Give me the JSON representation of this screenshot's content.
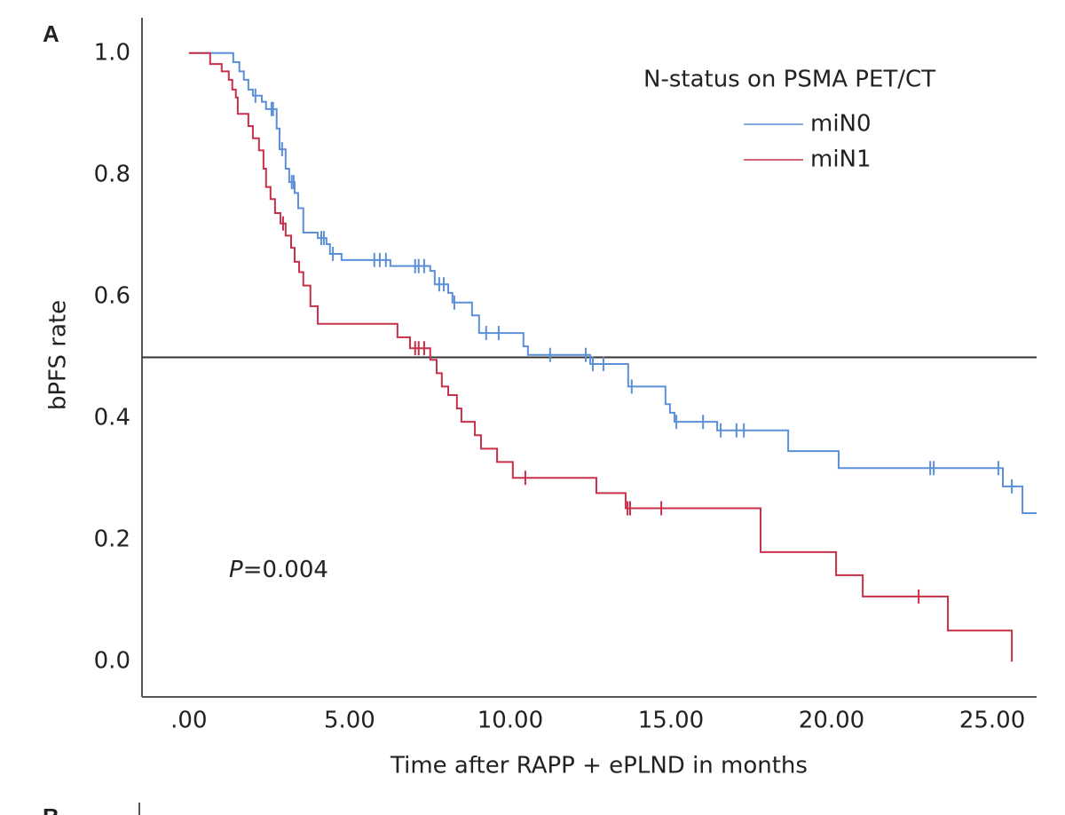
{
  "chart_data": {
    "type": "kaplan-meier",
    "panel_label": "A",
    "next_panel_label": "B",
    "x_label": "Time after RAPP + ePLND in months",
    "y_label": "bPFS rate",
    "legend_title": "N-status on PSMA PET/CT",
    "annotation": {
      "italic": "P",
      "text": "=0.004"
    },
    "reference_line": 0.5,
    "xlim": [
      -1.46,
      26.38
    ],
    "ylim": [
      -0.058,
      1.058
    ],
    "xticks": [
      {
        "value": 0,
        "label": ".00"
      },
      {
        "value": 5,
        "label": "5.00"
      },
      {
        "value": 10,
        "label": "10.00"
      },
      {
        "value": 15,
        "label": "15.00"
      },
      {
        "value": 20,
        "label": "20.00"
      },
      {
        "value": 25,
        "label": "25.00"
      }
    ],
    "yticks": [
      {
        "value": 0,
        "label": "0.0"
      },
      0.2,
      0.4,
      0.6,
      0.8,
      {
        "value": 1,
        "label": "1.0"
      }
    ],
    "series": [
      {
        "name": "miN0",
        "color": "#5b8fd9",
        "x": [
          0,
          1.38,
          1.57,
          1.71,
          1.85,
          1.99,
          2.27,
          2.4,
          2.73,
          2.82,
          3.01,
          3.12,
          3.29,
          3.4,
          3.56,
          4.01,
          4.28,
          4.39,
          4.75,
          6.27,
          7.51,
          7.65,
          8.07,
          8.2,
          8.81,
          9.03,
          10.41,
          10.55,
          12.49,
          13.67,
          14.83,
          14.97,
          15.11,
          16.44,
          18.65,
          20.22,
          25.33,
          25.94,
          26.38
        ],
        "values": [
          1.0,
          0.985,
          0.97,
          0.956,
          0.94,
          0.93,
          0.92,
          0.908,
          0.876,
          0.842,
          0.81,
          0.788,
          0.77,
          0.745,
          0.705,
          0.696,
          0.686,
          0.67,
          0.66,
          0.65,
          0.642,
          0.62,
          0.606,
          0.59,
          0.569,
          0.54,
          0.518,
          0.504,
          0.489,
          0.452,
          0.423,
          0.409,
          0.394,
          0.38,
          0.346,
          0.318,
          0.288,
          0.244,
          0.244
        ],
        "censored": [
          2.07,
          2.57,
          2.62,
          2.9,
          3.2,
          3.26,
          4.12,
          4.2,
          4.48,
          5.77,
          5.94,
          6.13,
          7.04,
          7.15,
          7.32,
          7.79,
          7.93,
          8.26,
          9.25,
          9.64,
          11.24,
          12.35,
          12.57,
          12.9,
          13.78,
          15.17,
          16.0,
          16.55,
          17.04,
          17.27,
          23.07,
          23.18,
          25.19,
          25.61
        ]
      },
      {
        "name": "miN1",
        "color": "#c8304a",
        "x": [
          0,
          0.66,
          1.02,
          1.24,
          1.35,
          1.46,
          1.52,
          1.85,
          1.99,
          2.18,
          2.32,
          2.4,
          2.54,
          2.68,
          2.85,
          3.01,
          3.18,
          3.29,
          3.43,
          3.56,
          3.78,
          4.01,
          6.49,
          6.88,
          7.51,
          7.71,
          7.87,
          8.07,
          8.34,
          8.48,
          8.9,
          9.09,
          9.59,
          10.08,
          12.68,
          13.59,
          17.79,
          20.14,
          20.97,
          23.62,
          25.61
        ],
        "values": [
          1.0,
          0.982,
          0.97,
          0.956,
          0.94,
          0.927,
          0.9,
          0.88,
          0.86,
          0.84,
          0.81,
          0.78,
          0.76,
          0.737,
          0.72,
          0.7,
          0.68,
          0.657,
          0.64,
          0.618,
          0.584,
          0.555,
          0.533,
          0.515,
          0.496,
          0.474,
          0.452,
          0.438,
          0.416,
          0.394,
          0.372,
          0.35,
          0.328,
          0.302,
          0.277,
          0.252,
          0.18,
          0.142,
          0.107,
          0.051,
          0.0
        ],
        "censored": [
          2.93,
          7.04,
          7.15,
          7.32,
          10.47,
          13.65,
          13.73,
          14.7,
          22.71
        ]
      }
    ]
  }
}
